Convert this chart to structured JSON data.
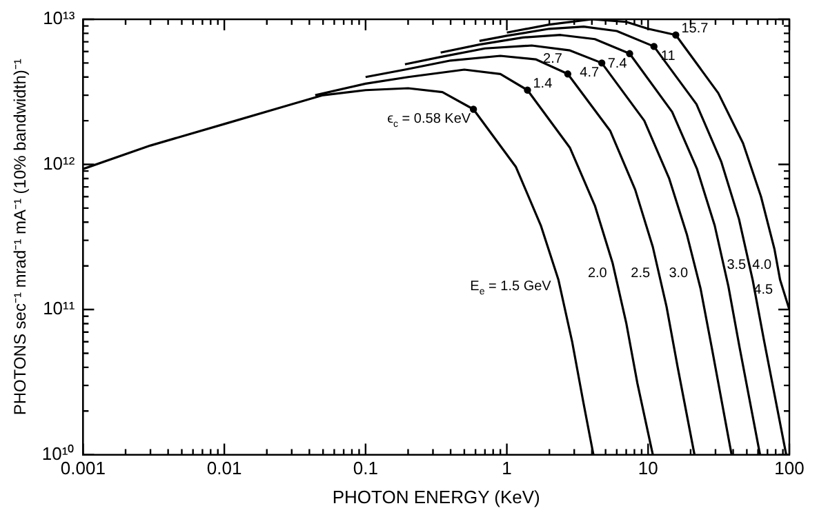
{
  "chart_data": {
    "type": "line",
    "xlabel": "PHOTON ENERGY (KeV)",
    "ylabel": "PHOTONS sec⁻¹ mrad⁻¹ mA⁻¹ (10% bandwidth)⁻¹",
    "log": "xy",
    "grid": false,
    "legend": false,
    "xlim": [
      0.001,
      100
    ],
    "ylim": [
      10000000000.0,
      10000000000000.0
    ],
    "xticks": [
      0.001,
      {
        "value": 0.002,
        "label": null
      },
      {
        "value": 0.003,
        "label": null
      },
      {
        "value": 0.004,
        "label": null
      },
      {
        "value": 0.005,
        "label": null
      },
      {
        "value": 0.006,
        "label": null
      },
      {
        "value": 0.007,
        "label": null
      },
      {
        "value": 0.008,
        "label": null
      },
      {
        "value": 0.009,
        "label": null
      },
      0.01,
      {
        "value": 0.02,
        "label": null
      },
      {
        "value": 0.03,
        "label": null
      },
      {
        "value": 0.04,
        "label": null
      },
      {
        "value": 0.05,
        "label": null
      },
      {
        "value": 0.06,
        "label": null
      },
      {
        "value": 0.07,
        "label": null
      },
      {
        "value": 0.08,
        "label": null
      },
      {
        "value": 0.09,
        "label": null
      },
      0.1,
      {
        "value": 0.2,
        "label": null
      },
      {
        "value": 0.3,
        "label": null
      },
      {
        "value": 0.4,
        "label": null
      },
      {
        "value": 0.5,
        "label": null
      },
      {
        "value": 0.6,
        "label": null
      },
      {
        "value": 0.7,
        "label": null
      },
      {
        "value": 0.8,
        "label": null
      },
      {
        "value": 0.9,
        "label": null
      },
      1,
      {
        "value": 2,
        "label": null
      },
      {
        "value": 3,
        "label": null
      },
      {
        "value": 4,
        "label": null
      },
      {
        "value": 5,
        "label": null
      },
      {
        "value": 6,
        "label": null
      },
      {
        "value": 7,
        "label": null
      },
      {
        "value": 8,
        "label": null
      },
      {
        "value": 9,
        "label": null
      },
      10,
      {
        "value": 20,
        "label": null
      },
      {
        "value": 30,
        "label": null
      },
      {
        "value": 40,
        "label": null
      },
      {
        "value": 50,
        "label": null
      },
      {
        "value": 60,
        "label": null
      },
      {
        "value": 70,
        "label": null
      },
      {
        "value": 80,
        "label": null
      },
      {
        "value": 90,
        "label": null
      },
      100
    ],
    "yticks": [
      {
        "value": 10000000000.0,
        "label": "10¹⁰"
      },
      {
        "value": 20000000000.0,
        "label": null
      },
      {
        "value": 30000000000.0,
        "label": null
      },
      {
        "value": 40000000000.0,
        "label": null
      },
      {
        "value": 50000000000.0,
        "label": null
      },
      {
        "value": 60000000000.0,
        "label": null
      },
      {
        "value": 70000000000.0,
        "label": null
      },
      {
        "value": 80000000000.0,
        "label": null
      },
      {
        "value": 90000000000.0,
        "label": null
      },
      {
        "value": 100000000000.0,
        "label": "10¹¹"
      },
      {
        "value": 200000000000.0,
        "label": null
      },
      {
        "value": 300000000000.0,
        "label": null
      },
      {
        "value": 400000000000.0,
        "label": null
      },
      {
        "value": 500000000000.0,
        "label": null
      },
      {
        "value": 600000000000.0,
        "label": null
      },
      {
        "value": 700000000000.0,
        "label": null
      },
      {
        "value": 800000000000.0,
        "label": null
      },
      {
        "value": 900000000000.0,
        "label": null
      },
      {
        "value": 1000000000000.0,
        "label": "10¹²"
      },
      {
        "value": 2000000000000.0,
        "label": null
      },
      {
        "value": 3000000000000.0,
        "label": null
      },
      {
        "value": 4000000000000.0,
        "label": null
      },
      {
        "value": 5000000000000.0,
        "label": null
      },
      {
        "value": 6000000000000.0,
        "label": null
      },
      {
        "value": 7000000000000.0,
        "label": null
      },
      {
        "value": 8000000000000.0,
        "label": null
      },
      {
        "value": 9000000000000.0,
        "label": null
      },
      {
        "value": 10000000000000.0,
        "label": "10¹³"
      }
    ],
    "series": [
      {
        "color": "#000000",
        "marker": "none",
        "x": [
          0.001,
          0.003,
          0.01,
          0.03,
          0.05,
          0.1,
          0.2,
          0.35,
          0.58,
          1.16,
          1.74,
          2.32,
          2.9,
          3.48,
          4.1
        ],
        "values": [
          930000000000.0,
          1350000000000.0,
          1900000000000.0,
          2600000000000.0,
          3000000000000.0,
          3250000000000.0,
          3350000000000.0,
          3150000000000.0,
          2400000000000.0,
          960000000000.0,
          380000000000.0,
          160000000000.0,
          60000000000.0,
          23000000000.0,
          10000000000.0
        ]
      },
      {
        "color": "#000000",
        "marker": "none",
        "x": [
          0.044,
          0.1,
          0.2,
          0.5,
          0.9,
          1.4,
          2.8,
          4.2,
          5.6,
          7.0,
          8.4,
          10.8
        ],
        "values": [
          3000000000000.0,
          3600000000000.0,
          4000000000000.0,
          4500000000000.0,
          4200000000000.0,
          3250000000000.0,
          1300000000000.0,
          520000000000.0,
          210000000000.0,
          81000000000.0,
          31000000000.0,
          10000000000.0
        ]
      },
      {
        "color": "#000000",
        "marker": "none",
        "x": [
          0.1,
          0.19,
          0.4,
          0.9,
          1.6,
          2.7,
          5.4,
          8.1,
          10.8,
          13.5,
          16.2,
          21.3
        ],
        "values": [
          4000000000000.0,
          4500000000000.0,
          5200000000000.0,
          5600000000000.0,
          5300000000000.0,
          4200000000000.0,
          1700000000000.0,
          670000000000.0,
          270000000000.0,
          105000000000.0,
          40000000000.0,
          10000000000.0
        ]
      },
      {
        "color": "#000000",
        "marker": "none",
        "x": [
          0.19,
          0.34,
          0.7,
          1.5,
          2.8,
          4.7,
          9.4,
          14.1,
          18.8,
          23.5,
          28.2,
          39
        ],
        "values": [
          4900000000000.0,
          5500000000000.0,
          6300000000000.0,
          6600000000000.0,
          6100000000000.0,
          5000000000000.0,
          2000000000000.0,
          800000000000.0,
          330000000000.0,
          140000000000.0,
          55000000000.0,
          10000000000.0
        ]
      },
      {
        "color": "#000000",
        "marker": "none",
        "x": [
          0.34,
          0.64,
          1.3,
          2.4,
          4.2,
          7.4,
          14.8,
          22.2,
          29.6,
          37,
          44.4,
          62
        ],
        "values": [
          5900000000000.0,
          6700000000000.0,
          7500000000000.0,
          7800000000000.0,
          7300000000000.0,
          5800000000000.0,
          2300000000000.0,
          930000000000.0,
          380000000000.0,
          145000000000.0,
          55000000000.0,
          10000000000.0
        ]
      },
      {
        "color": "#000000",
        "marker": "none",
        "x": [
          0.64,
          1.0,
          2.0,
          3.5,
          6,
          11,
          22,
          33,
          44,
          55,
          66,
          95
        ],
        "values": [
          7100000000000.0,
          7700000000000.0,
          8600000000000.0,
          8900000000000.0,
          8300000000000.0,
          6500000000000.0,
          2600000000000.0,
          1040000000000.0,
          420000000000.0,
          160000000000.0,
          62000000000.0,
          10000000000.0
        ]
      },
      {
        "color": "#000000",
        "marker": "none",
        "x": [
          1.0,
          2.0,
          4.0,
          7,
          10,
          15.7,
          31.4,
          47,
          63,
          78.5,
          86,
          100
        ],
        "values": [
          8100000000000.0,
          9200000000000.0,
          10000000000000.0,
          9600000000000.0,
          8600000000000.0,
          7800000000000.0,
          3100000000000.0,
          1400000000000.0,
          600000000000.0,
          260000000000.0,
          160000000000.0,
          100000000000.0
        ]
      },
      {
        "type": "scatter",
        "color": "#000000",
        "marker": "circle",
        "x": [
          0.58,
          1.4,
          2.7,
          4.7,
          7.4,
          11,
          15.7
        ],
        "values": [
          2400000000000.0,
          3250000000000.0,
          4200000000000.0,
          5000000000000.0,
          5800000000000.0,
          6500000000000.0,
          7800000000000.0
        ]
      }
    ],
    "annotations": [
      {
        "text": "ϵ$_{c}$ = 0.58 KeV",
        "x": 0.58,
        "y": 2400000000000.0
      },
      {
        "text": "1.4",
        "x": 1.4,
        "y": 3250000000000.0
      },
      {
        "text": "2.7",
        "x": 2.7,
        "y": 4200000000000.0
      },
      {
        "text": "4.7",
        "x": 4.7,
        "y": 5000000000000.0
      },
      {
        "text": "7.4",
        "x": 7.4,
        "y": 5800000000000.0
      },
      {
        "text": "11",
        "x": 11,
        "y": 6500000000000.0
      },
      {
        "text": "15.7",
        "x": 15.7,
        "y": 7800000000000.0
      },
      {
        "text": "E$_{e}$ = 1.5 GeV",
        "x": 2.25,
        "y": 130000000000.0
      },
      {
        "text": "2.0",
        "x": 5.6,
        "y": 160000000000.0
      },
      {
        "text": "2.5",
        "x": 11.3,
        "y": 160000000000.0
      },
      {
        "text": "3.0",
        "x": 21,
        "y": 160000000000.0
      },
      {
        "text": "3.5",
        "x": 33,
        "y": 160000000000.0
      },
      {
        "text": "4.0",
        "x": 50,
        "y": 160000000000.0
      },
      {
        "text": "4.5",
        "x": 80,
        "y": 160000000000.0
      }
    ]
  }
}
